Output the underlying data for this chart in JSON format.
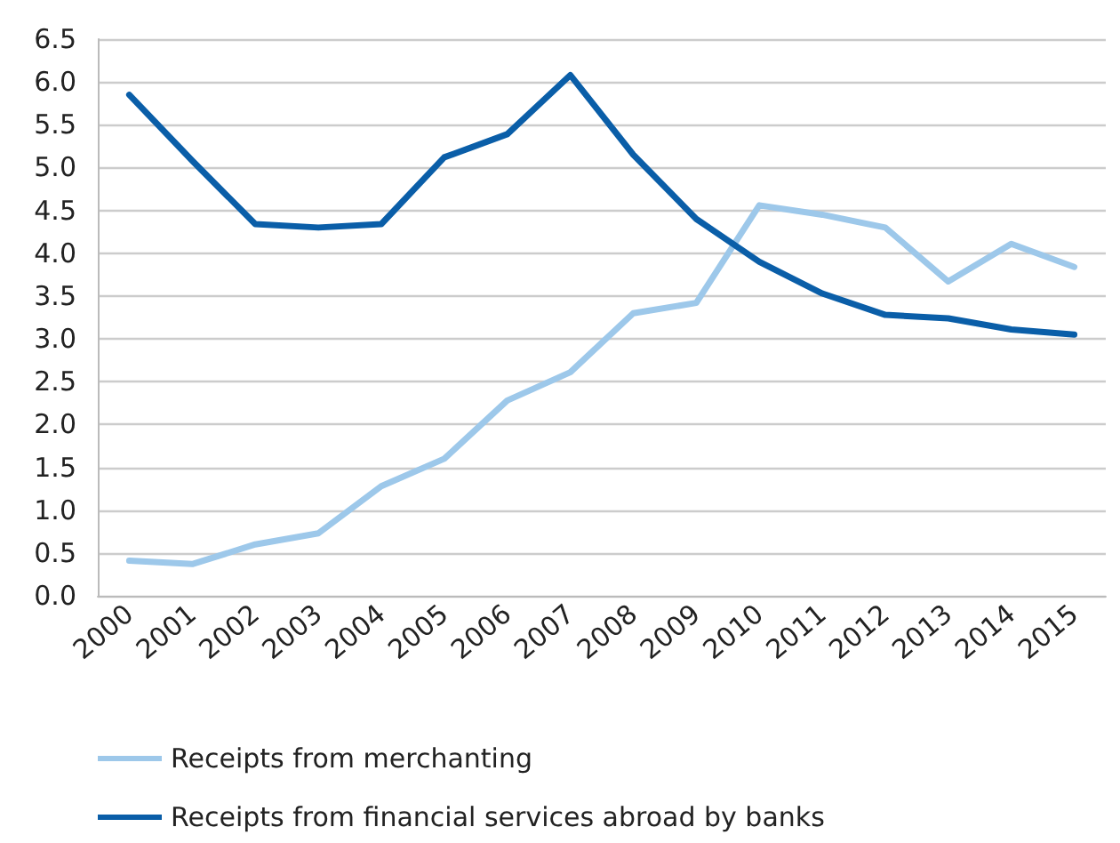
{
  "chart_data": {
    "type": "line",
    "categories": [
      "2000",
      "2001",
      "2002",
      "2003",
      "2004",
      "2005",
      "2006",
      "2007",
      "2008",
      "2009",
      "2010",
      "2011",
      "2012",
      "2013",
      "2014",
      "2015"
    ],
    "series": [
      {
        "name": "Receipts from merchanting",
        "color": "#9dc8ea",
        "values": [
          0.41,
          0.37,
          0.6,
          0.73,
          1.28,
          1.6,
          2.28,
          2.61,
          3.3,
          3.42,
          4.56,
          4.45,
          4.3,
          3.67,
          4.11,
          3.84
        ]
      },
      {
        "name": "Receipts from financial services abroad by banks",
        "color": "#0a5ea8",
        "values": [
          5.85,
          5.08,
          4.34,
          4.3,
          4.34,
          5.12,
          5.39,
          6.08,
          5.15,
          4.4,
          3.9,
          3.53,
          3.28,
          3.24,
          3.11,
          3.05
        ]
      }
    ],
    "ylim": [
      0,
      6.5
    ],
    "yticks": [
      {
        "value": 0,
        "label": "0.0"
      },
      {
        "value": 0.5,
        "label": "0.5"
      },
      {
        "value": 1,
        "label": "1.0"
      },
      {
        "value": 1.5,
        "label": "1.5"
      },
      {
        "value": 2,
        "label": "2.0"
      },
      {
        "value": 2.5,
        "label": "2.5"
      },
      {
        "value": 3,
        "label": "3.0"
      },
      {
        "value": 3.5,
        "label": "3.5"
      },
      {
        "value": 4,
        "label": "4.0"
      },
      {
        "value": 4.5,
        "label": "4.5"
      },
      {
        "value": 5,
        "label": "5.0"
      },
      {
        "value": 5.5,
        "label": "5.5"
      },
      {
        "value": 6,
        "label": "6.0"
      },
      {
        "value": 6.5,
        "label": "6.5"
      }
    ],
    "grid": "y",
    "legend": "bottom left",
    "marker": "none",
    "line_style": "solid"
  }
}
